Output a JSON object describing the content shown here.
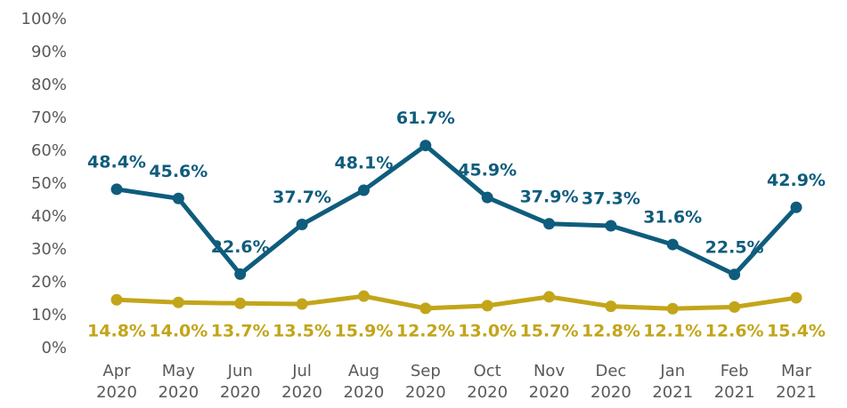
{
  "chart_data": {
    "type": "line",
    "categories": [
      "Apr 2020",
      "May 2020",
      "Jun 2020",
      "Jul 2020",
      "Aug 2020",
      "Sep 2020",
      "Oct 2020",
      "Nov 2020",
      "Dec 2020",
      "Jan 2021",
      "Feb 2021",
      "Mar 2021"
    ],
    "series": [
      {
        "color": "#0f5c7c",
        "values": [
          48.4,
          45.6,
          22.6,
          37.7,
          48.1,
          61.7,
          45.9,
          37.9,
          37.3,
          31.6,
          22.5,
          42.9
        ],
        "value_labels": [
          "48.4%",
          "45.6%",
          "22.6%",
          "37.7%",
          "48.1%",
          "61.7%",
          "45.9%",
          "37.9%",
          "37.3%",
          "31.6%",
          "22.5%",
          "42.9%"
        ]
      },
      {
        "color": "#c3a51a",
        "values": [
          14.8,
          14.0,
          13.7,
          13.5,
          15.9,
          12.2,
          13.0,
          15.7,
          12.8,
          12.1,
          12.6,
          15.4
        ],
        "value_labels": [
          "14.8%",
          "14.0%",
          "13.7%",
          "13.5%",
          "15.9%",
          "12.2%",
          "13.0%",
          "15.7%",
          "12.8%",
          "12.1%",
          "12.6%",
          "15.4%"
        ]
      }
    ],
    "ylim": [
      0,
      100
    ],
    "yticks": [
      {
        "value": 0,
        "label": "0%"
      },
      {
        "value": 10,
        "label": "10%"
      },
      {
        "value": 20,
        "label": "20%"
      },
      {
        "value": 30,
        "label": "30%"
      },
      {
        "value": 40,
        "label": "40%"
      },
      {
        "value": 50,
        "label": "50%"
      },
      {
        "value": 60,
        "label": "60%"
      },
      {
        "value": 70,
        "label": "70%"
      },
      {
        "value": 80,
        "label": "80%"
      },
      {
        "value": 90,
        "label": "90%"
      },
      {
        "value": 100,
        "label": "100%"
      }
    ]
  }
}
